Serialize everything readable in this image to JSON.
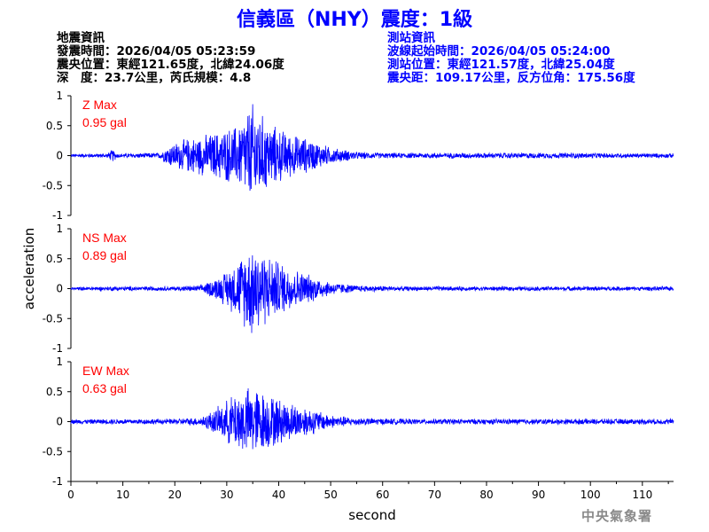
{
  "title": "信義區（NHY）震度：1級",
  "quake_info": {
    "header": "地震資訊",
    "origin_time": "發震時間：2026/04/05 05:23:59",
    "epicenter": "震央位置：東經121.65度，北緯24.06度",
    "depth_magnitude": "深　度：23.7公里，芮氏規模：4.8"
  },
  "station_info": {
    "header": "測站資訊",
    "wave_start": "波線起始時間：2026/04/05 05:24:00",
    "station_location": "測站位置：東經121.57度，北緯25.04度",
    "distance_azimuth": "震央距：109.17公里，反方位角：175.56度"
  },
  "credit": "中央氣象署",
  "colors": {
    "trace": "#0000ff",
    "label": "#ff0000",
    "title": "#0000ff"
  },
  "chart_data": {
    "type": "line",
    "xlabel": "second",
    "ylabel": "acceleration",
    "xlim": [
      0,
      116
    ],
    "ylim": [
      -1,
      1
    ],
    "x_ticks": [
      0,
      10,
      20,
      30,
      40,
      50,
      60,
      70,
      80,
      90,
      100,
      110
    ],
    "y_ticks": [
      1,
      0.5,
      0,
      -0.5,
      -1
    ],
    "y_tick_labels": [
      "1",
      "0.5",
      "0",
      "-0.5",
      "-1"
    ],
    "panels": [
      {
        "name": "Z Max",
        "max_label": "0.95 gal",
        "envelope": [
          [
            0,
            0.03
          ],
          [
            7,
            0.04
          ],
          [
            8,
            0.12
          ],
          [
            9,
            0.04
          ],
          [
            17,
            0.05
          ],
          [
            19,
            0.2
          ],
          [
            22,
            0.3
          ],
          [
            27,
            0.4
          ],
          [
            32,
            0.55
          ],
          [
            35,
            0.95
          ],
          [
            38,
            0.6
          ],
          [
            42,
            0.4
          ],
          [
            46,
            0.3
          ],
          [
            50,
            0.15
          ],
          [
            55,
            0.07
          ],
          [
            60,
            0.05
          ],
          [
            95,
            0.05
          ],
          [
            116,
            0.04
          ]
        ]
      },
      {
        "name": "NS Max",
        "max_label": "0.89 gal",
        "envelope": [
          [
            0,
            0.03
          ],
          [
            8,
            0.04
          ],
          [
            20,
            0.04
          ],
          [
            25,
            0.06
          ],
          [
            29,
            0.25
          ],
          [
            32,
            0.5
          ],
          [
            35,
            0.89
          ],
          [
            38,
            0.6
          ],
          [
            42,
            0.4
          ],
          [
            46,
            0.25
          ],
          [
            50,
            0.12
          ],
          [
            55,
            0.06
          ],
          [
            65,
            0.04
          ],
          [
            116,
            0.04
          ]
        ]
      },
      {
        "name": "EW Max",
        "max_label": "0.63 gal",
        "envelope": [
          [
            0,
            0.04
          ],
          [
            10,
            0.05
          ],
          [
            20,
            0.05
          ],
          [
            25,
            0.08
          ],
          [
            29,
            0.3
          ],
          [
            32,
            0.55
          ],
          [
            35,
            0.63
          ],
          [
            38,
            0.5
          ],
          [
            42,
            0.35
          ],
          [
            46,
            0.25
          ],
          [
            50,
            0.12
          ],
          [
            55,
            0.07
          ],
          [
            65,
            0.05
          ],
          [
            116,
            0.05
          ]
        ]
      }
    ]
  }
}
